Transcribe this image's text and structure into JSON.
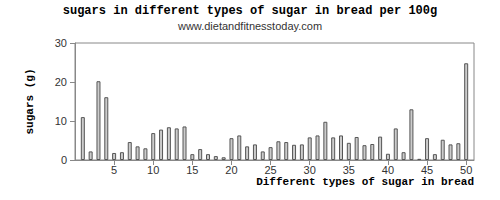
{
  "chart_data": {
    "type": "bar",
    "title": "sugars in different types of sugar in bread per 100g",
    "subtitle": "www.dietandfitnesstoday.com",
    "x_label": "Different types of sugar in bread",
    "y_label": "sugars (g)",
    "x": [
      1,
      2,
      3,
      4,
      5,
      6,
      7,
      8,
      9,
      10,
      11,
      12,
      13,
      14,
      15,
      16,
      17,
      18,
      19,
      20,
      21,
      22,
      23,
      24,
      25,
      26,
      27,
      28,
      29,
      30,
      31,
      32,
      33,
      34,
      35,
      36,
      37,
      38,
      39,
      40,
      41,
      42,
      43,
      44,
      45,
      46,
      47,
      48,
      49,
      50
    ],
    "values": [
      11,
      2.2,
      20.2,
      16.1,
      1.8,
      2,
      4.6,
      3.5,
      3,
      6.9,
      7.8,
      8.4,
      8.1,
      8.6,
      1.5,
      2.8,
      1.5,
      1,
      0.7,
      5.6,
      6.3,
      3.5,
      4,
      2.2,
      3.3,
      4.8,
      4.6,
      3.9,
      4,
      5.8,
      6.3,
      9.8,
      5.8,
      6.3,
      4.4,
      5.9,
      3.8,
      4.1,
      6,
      1.6,
      8.1,
      2,
      13,
      0.3,
      5.6,
      1.5,
      5.2,
      4,
      4.3,
      24.8
    ],
    "color": "#cccccc",
    "xlim": [
      0,
      51
    ],
    "xticks": [
      5,
      10,
      15,
      20,
      25,
      30,
      35,
      40,
      45,
      50
    ],
    "ylim": [
      0,
      30
    ],
    "yticks": [
      0,
      10,
      20,
      30
    ],
    "grid": false
  }
}
